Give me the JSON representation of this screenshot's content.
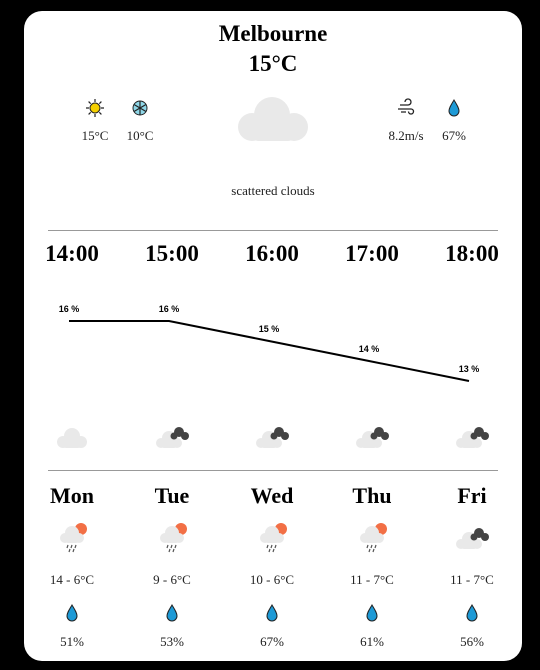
{
  "location": {
    "city": "Melbourne",
    "current_temp": "15°C"
  },
  "stats": {
    "temp_max": "15°C",
    "temp_min": "10°C",
    "wind": "8.2m/s",
    "humidity": "67%",
    "description": "scattered clouds"
  },
  "hourly": [
    {
      "time": "14:00",
      "chance": "16 %",
      "value": 16,
      "icon": "cloud-icon"
    },
    {
      "time": "15:00",
      "chance": "16 %",
      "value": 16,
      "icon": "cloud-dark-icon"
    },
    {
      "time": "16:00",
      "chance": "15 %",
      "value": 15,
      "icon": "cloud-dark-icon"
    },
    {
      "time": "17:00",
      "chance": "14 %",
      "value": 14,
      "icon": "cloud-dark-icon"
    },
    {
      "time": "18:00",
      "chance": "13 %",
      "value": 13,
      "icon": "cloud-dark-icon"
    }
  ],
  "chart_data": {
    "type": "line",
    "categories": [
      "14:00",
      "15:00",
      "16:00",
      "17:00",
      "18:00"
    ],
    "values": [
      16,
      16,
      15,
      14,
      13
    ],
    "labels": [
      "16 %",
      "16 %",
      "15 %",
      "14 %",
      "13 %"
    ]
  },
  "daily": [
    {
      "day": "Mon",
      "range": "14 - 6°C",
      "humidity": "51%",
      "icon": "sun-rain-cloud-icon"
    },
    {
      "day": "Tue",
      "range": "9 - 6°C",
      "humidity": "53%",
      "icon": "sun-rain-cloud-icon"
    },
    {
      "day": "Wed",
      "range": "10 - 6°C",
      "humidity": "67%",
      "icon": "sun-rain-cloud-icon"
    },
    {
      "day": "Thu",
      "range": "11 - 7°C",
      "humidity": "61%",
      "icon": "sun-rain-cloud-icon"
    },
    {
      "day": "Fri",
      "range": "11 - 7°C",
      "humidity": "56%",
      "icon": "cloud-dark-icon"
    }
  ],
  "colors": {
    "sun": "#f5d000",
    "snow": "#2aa8c8",
    "drop": "#1e9ad6",
    "sun_orange": "#f26f45",
    "cloud": "#e9e9e9",
    "dark_cloud": "#444444"
  }
}
